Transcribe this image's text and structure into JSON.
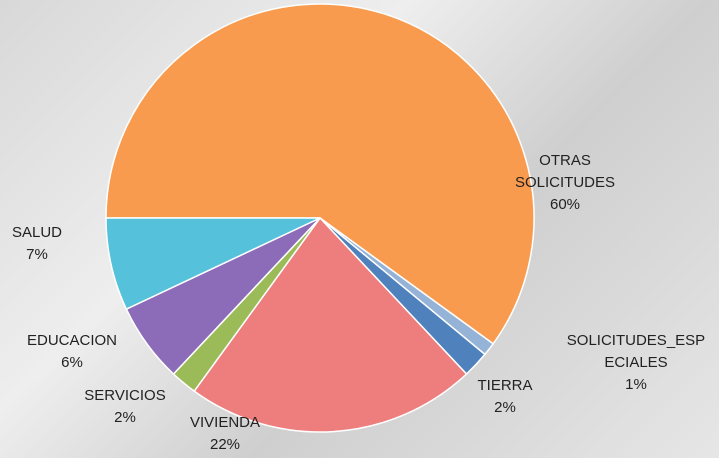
{
  "chart_data": {
    "type": "pie",
    "categories": [
      "OTRAS SOLICITUDES",
      "SOLICITUDES_ESPECIALES",
      "TIERRA",
      "VIVIENDA",
      "SERVICIOS",
      "EDUCACION",
      "SALUD"
    ],
    "values": [
      60,
      1,
      2,
      22,
      2,
      6,
      7
    ],
    "value_labels": [
      "60%",
      "1%",
      "2%",
      "22%",
      "2%",
      "6%",
      "7%"
    ],
    "colors": [
      "#f99b4e",
      "#95b3d7",
      "#4f81bd",
      "#ee7d7d",
      "#9bbb59",
      "#8c6cb8",
      "#55c1da"
    ]
  }
}
